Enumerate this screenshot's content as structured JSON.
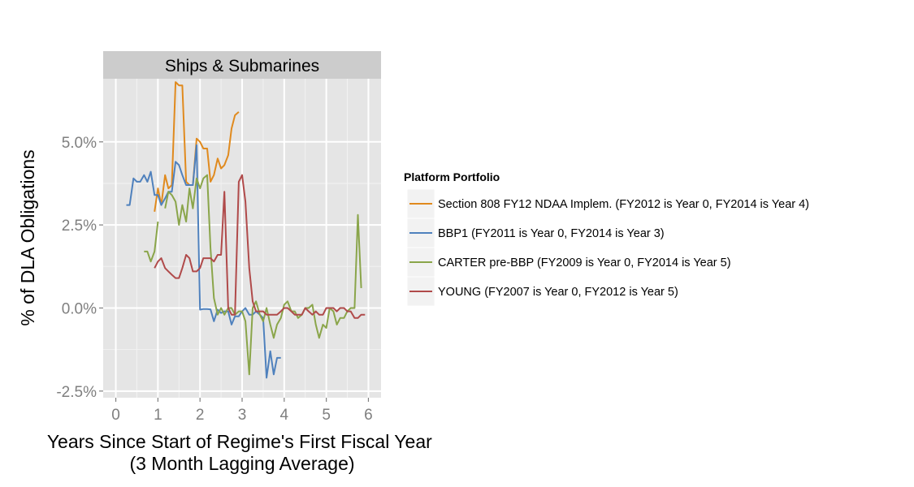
{
  "chart_data": {
    "type": "line",
    "facet_title": "Ships & Submarines",
    "xlabel": "Years Since Start of Regime's First Fiscal Year\n(3 Month Lagging Average)",
    "ylabel": "% of DLA Obligations",
    "xlim": [
      -0.3,
      6.3
    ],
    "ylim": [
      -0.027,
      0.069
    ],
    "x_ticks": [
      0,
      1,
      2,
      3,
      4,
      5,
      6
    ],
    "y_ticks": [
      -0.025,
      0,
      0.025,
      0.05
    ],
    "y_tick_labels": [
      "-2.5%",
      "0.0%",
      "2.5%",
      "5.0%"
    ],
    "x_tick_labels": [
      "0",
      "1",
      "2",
      "3",
      "4",
      "5",
      "6"
    ],
    "grid": true,
    "legend": {
      "title": "Platform Portfolio",
      "placement": "right"
    },
    "series": [
      {
        "name": "Section 808 FY12 NDAA Implem. (FY2012 is Year 0, FY2014 is Year 4)",
        "color": "#e08a1e",
        "x": [
          0.92,
          1.0,
          1.08,
          1.17,
          1.25,
          1.33,
          1.42,
          1.5,
          1.58,
          1.67,
          1.75,
          1.83,
          1.92,
          2.0,
          2.08,
          2.17,
          2.25,
          2.33,
          2.42,
          2.5,
          2.58,
          2.67,
          2.75,
          2.83,
          2.92
        ],
        "y": [
          0.029,
          0.036,
          0.031,
          0.04,
          0.036,
          0.037,
          0.068,
          0.067,
          0.067,
          0.038,
          0.037,
          0.037,
          0.051,
          0.05,
          0.048,
          0.048,
          0.038,
          0.04,
          0.045,
          0.042,
          0.043,
          0.046,
          0.054,
          0.058,
          0.059
        ]
      },
      {
        "name": "BBP1 (FY2011 is Year 0, FY2014 is Year 3)",
        "color": "#4f81bd",
        "x": [
          0.25,
          0.33,
          0.42,
          0.5,
          0.58,
          0.67,
          0.75,
          0.83,
          0.92,
          1.0,
          1.08,
          1.17,
          1.25,
          1.33,
          1.42,
          1.5,
          1.58,
          1.67,
          1.75,
          1.83,
          1.92,
          2.0,
          2.08,
          2.17,
          2.25,
          2.33,
          2.42,
          2.5,
          2.58,
          2.67,
          2.75,
          2.83,
          2.92,
          3.0,
          3.08,
          3.17,
          3.25,
          3.33,
          3.42,
          3.5,
          3.58,
          3.67,
          3.75,
          3.83,
          3.92
        ],
        "y": [
          0.031,
          0.031,
          0.039,
          0.038,
          0.038,
          0.04,
          0.038,
          0.041,
          0.034,
          0.034,
          0.031,
          0.033,
          0.035,
          0.035,
          0.044,
          0.043,
          0.04,
          0.037,
          0.037,
          0.037,
          0.049,
          -0.0005,
          -0.0003,
          -0.0003,
          -0.0004,
          -0.004,
          -0.0005,
          -0.0015,
          -0.001,
          -0.001,
          -0.005,
          -0.0025,
          -0.0025,
          -0.001,
          0.0,
          -0.002,
          -0.002,
          -0.001,
          -0.002,
          -0.003,
          -0.021,
          -0.013,
          -0.02,
          -0.015,
          -0.015
        ]
      },
      {
        "name": "CARTER pre-BBP (FY2009 is Year 0, FY2014 is Year 5)",
        "color": "#8aa54a",
        "x": [
          0.67,
          0.75,
          0.83,
          0.92,
          1.0,
          1.08,
          1.17,
          1.25,
          1.33,
          1.42,
          1.5,
          1.58,
          1.67,
          1.75,
          1.83,
          1.92,
          2.0,
          2.08,
          2.17,
          2.25,
          2.33,
          2.42,
          2.5,
          2.58,
          2.67,
          2.75,
          2.83,
          2.92,
          3.0,
          3.08,
          3.17,
          3.25,
          3.33,
          3.42,
          3.5,
          3.58,
          3.67,
          3.75,
          3.83,
          3.92,
          4.0,
          4.08,
          4.17,
          4.25,
          4.33,
          4.42,
          4.5,
          4.58,
          4.67,
          4.75,
          4.83,
          4.92,
          5.0,
          5.08,
          5.17,
          5.25,
          5.33,
          5.42,
          5.5,
          5.58,
          5.67,
          5.75,
          5.83,
          5.92
        ],
        "y": [
          0.017,
          0.017,
          0.014,
          0.017,
          0.026,
          null,
          0.03,
          0.035,
          0.034,
          0.032,
          0.025,
          0.031,
          0.026,
          0.036,
          0.03,
          0.039,
          0.036,
          0.039,
          0.04,
          0.018,
          0.003,
          -0.002,
          0.0,
          -0.002,
          0.0,
          0.0,
          -0.002,
          -0.001,
          -0.001,
          -0.004,
          -0.02,
          0.0,
          0.002,
          -0.002,
          -0.004,
          0.0,
          -0.005,
          -0.009,
          -0.005,
          -0.003,
          0.001,
          0.002,
          -0.001,
          -0.001,
          -0.003,
          -0.002,
          0.0,
          0.0,
          0.001,
          -0.005,
          -0.009,
          -0.005,
          -0.006,
          0.0,
          -0.001,
          -0.005,
          -0.003,
          -0.003,
          -0.001,
          0.0,
          0.0,
          0.028,
          0.006,
          null
        ]
      },
      {
        "name": "YOUNG (FY2007 is Year 0, FY2012 is Year 5)",
        "color": "#b04a4a",
        "x": [
          0.92,
          1.0,
          1.08,
          1.17,
          1.25,
          1.33,
          1.42,
          1.5,
          1.58,
          1.67,
          1.75,
          1.83,
          1.92,
          2.0,
          2.08,
          2.17,
          2.25,
          2.33,
          2.42,
          2.5,
          2.58,
          2.67,
          2.75,
          2.83,
          2.92,
          3.0,
          3.08,
          3.17,
          3.25,
          3.33,
          3.42,
          3.5,
          3.58,
          3.67,
          3.75,
          3.83,
          3.92,
          4.0,
          4.08,
          4.17,
          4.25,
          4.33,
          4.42,
          4.5,
          4.58,
          4.67,
          4.75,
          4.83,
          4.92,
          5.0,
          5.08,
          5.17,
          5.25,
          5.33,
          5.42,
          5.5,
          5.58,
          5.67,
          5.75,
          5.83,
          5.92
        ],
        "y": [
          0.012,
          0.014,
          0.015,
          0.012,
          0.011,
          0.01,
          0.009,
          0.009,
          0.012,
          0.016,
          0.015,
          0.011,
          0.011,
          0.012,
          0.015,
          0.015,
          0.015,
          0.014,
          0.016,
          0.016,
          0.035,
          0.0,
          -0.002,
          -0.002,
          0.038,
          0.04,
          0.032,
          0.012,
          0.002,
          -0.001,
          -0.001,
          -0.001,
          -0.002,
          -0.002,
          -0.002,
          -0.002,
          -0.001,
          0.0,
          0.0,
          -0.001,
          -0.002,
          -0.002,
          -0.002,
          0.0,
          -0.001,
          -0.002,
          -0.001,
          -0.002,
          -0.002,
          0.0,
          0.0,
          0.0,
          -0.001,
          0.0,
          0.0,
          -0.001,
          -0.001,
          -0.003,
          -0.003,
          -0.002,
          -0.002
        ]
      }
    ]
  }
}
